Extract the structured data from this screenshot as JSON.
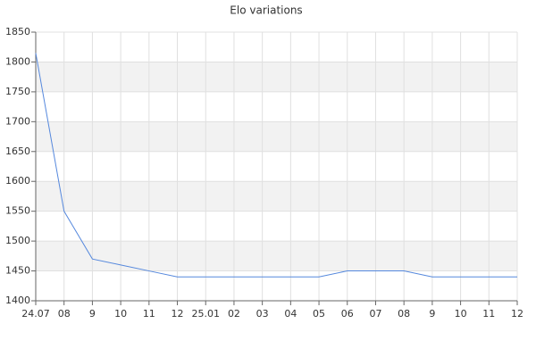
{
  "chart_data": {
    "type": "line",
    "title": "Elo variations",
    "categories": [
      "24.07",
      "08",
      "9",
      "10",
      "11",
      "12",
      "25.01",
      "02",
      "03",
      "04",
      "05",
      "06",
      "07",
      "08",
      "9",
      "10",
      "11",
      "12"
    ],
    "series": [
      {
        "color": "#5588dd",
        "values": [
          1815,
          1550,
          1470,
          1460,
          1450,
          1440,
          1440,
          1440,
          1440,
          1440,
          1440,
          1450,
          1450,
          1450,
          1440,
          1440,
          1440,
          1440
        ]
      }
    ],
    "ylim": [
      1400,
      1850
    ],
    "yticks": [
      1400,
      1450,
      1500,
      1550,
      1600,
      1650,
      1700,
      1750,
      1800,
      1850
    ],
    "grid": true
  }
}
